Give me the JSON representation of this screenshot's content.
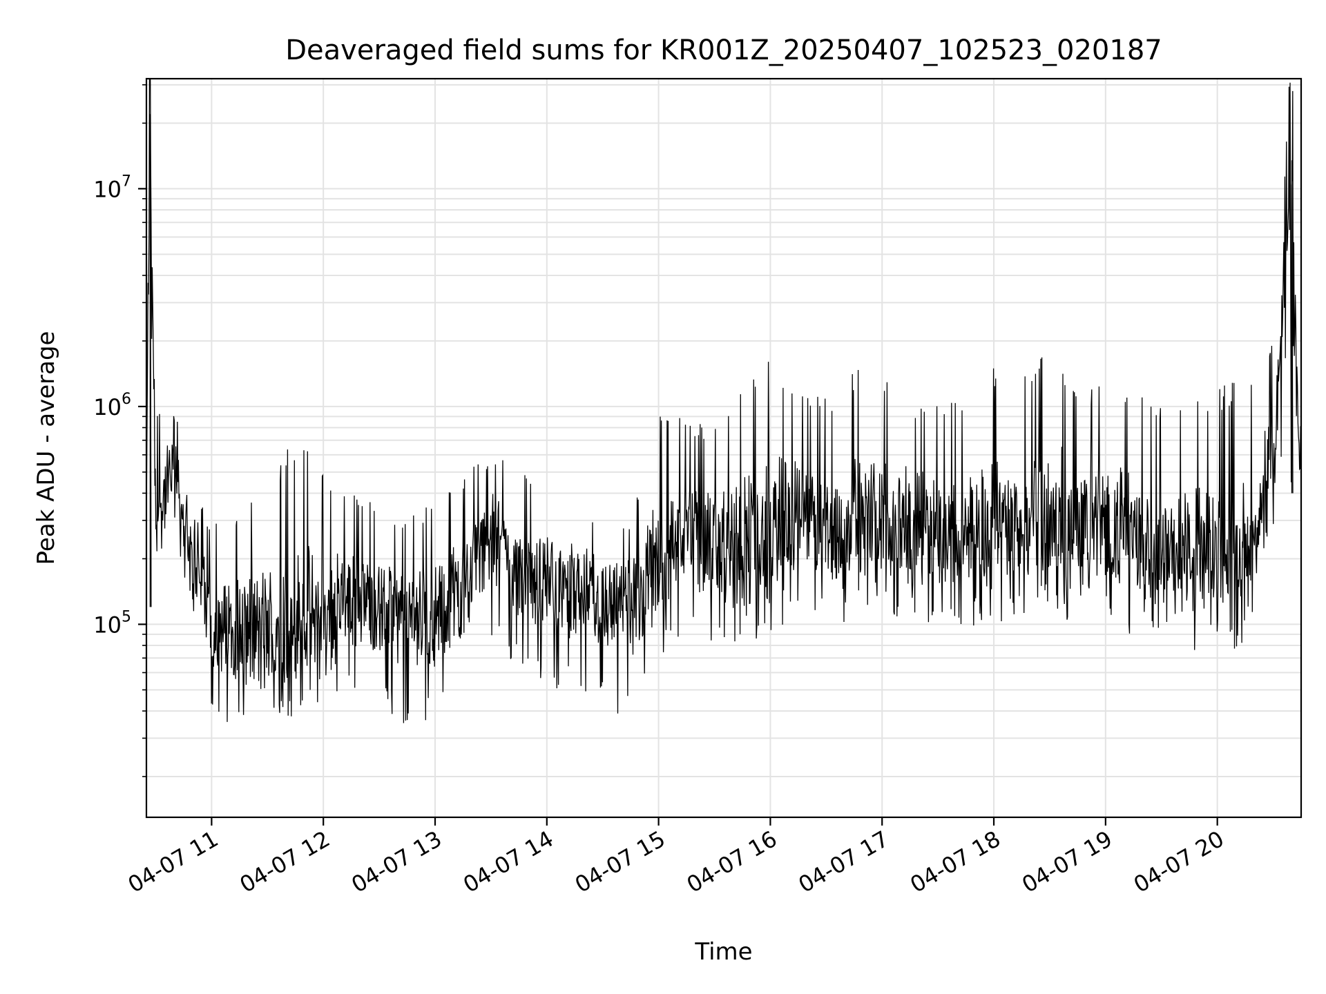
{
  "chart_data": {
    "type": "line",
    "title": "Deaveraged field sums for KR001Z_20250407_102523_020187",
    "xlabel": "Time",
    "ylabel": "Peak ADU - average",
    "yscale": "log",
    "ylim": [
      13000,
      32000000
    ],
    "xlim": [
      "2025-04-07 10:25",
      "2025-04-07 20:45"
    ],
    "grid": true,
    "line_color": "#000000",
    "xticks": [
      {
        "value": "2025-04-07 11:00",
        "label": "04-07 11"
      },
      {
        "value": "2025-04-07 12:00",
        "label": "04-07 12"
      },
      {
        "value": "2025-04-07 13:00",
        "label": "04-07 13"
      },
      {
        "value": "2025-04-07 14:00",
        "label": "04-07 14"
      },
      {
        "value": "2025-04-07 15:00",
        "label": "04-07 15"
      },
      {
        "value": "2025-04-07 16:00",
        "label": "04-07 16"
      },
      {
        "value": "2025-04-07 17:00",
        "label": "04-07 17"
      },
      {
        "value": "2025-04-07 18:00",
        "label": "04-07 18"
      },
      {
        "value": "2025-04-07 19:00",
        "label": "04-07 19"
      },
      {
        "value": "2025-04-07 20:00",
        "label": "04-07 20"
      }
    ],
    "yticks": [
      {
        "value": 100000,
        "base": "10",
        "exp": "5"
      },
      {
        "value": 1000000,
        "base": "10",
        "exp": "6"
      },
      {
        "value": 10000000,
        "base": "10",
        "exp": "7"
      }
    ],
    "series": [
      {
        "x": [
          "2025-04-07 10:25",
          "2025-04-07 10:27",
          "2025-04-07 10:30",
          "2025-04-07 10:35",
          "2025-04-07 10:40",
          "2025-04-07 10:45",
          "2025-04-07 10:50",
          "2025-04-07 10:55",
          "2025-04-07 11:00",
          "2025-04-07 11:15",
          "2025-04-07 11:30",
          "2025-04-07 11:45",
          "2025-04-07 12:00",
          "2025-04-07 12:15",
          "2025-04-07 12:30",
          "2025-04-07 12:45",
          "2025-04-07 13:00",
          "2025-04-07 13:15",
          "2025-04-07 13:30",
          "2025-04-07 13:45",
          "2025-04-07 14:00",
          "2025-04-07 14:15",
          "2025-04-07 14:30",
          "2025-04-07 14:45",
          "2025-04-07 15:00",
          "2025-04-07 15:15",
          "2025-04-07 15:30",
          "2025-04-07 15:45",
          "2025-04-07 16:00",
          "2025-04-07 16:15",
          "2025-04-07 16:30",
          "2025-04-07 16:45",
          "2025-04-07 17:00",
          "2025-04-07 17:15",
          "2025-04-07 17:30",
          "2025-04-07 17:45",
          "2025-04-07 18:00",
          "2025-04-07 18:15",
          "2025-04-07 18:30",
          "2025-04-07 18:45",
          "2025-04-07 19:00",
          "2025-04-07 19:15",
          "2025-04-07 19:30",
          "2025-04-07 19:45",
          "2025-04-07 20:00",
          "2025-04-07 20:15",
          "2025-04-07 20:30",
          "2025-04-07 20:40",
          "2025-04-07 20:44"
        ],
        "y": [
          350000,
          22000000,
          300000,
          400000,
          550000,
          300000,
          180000,
          150000,
          100000,
          95000,
          90000,
          95000,
          110000,
          130000,
          120000,
          105000,
          110000,
          150000,
          250000,
          170000,
          160000,
          140000,
          130000,
          115000,
          200000,
          260000,
          220000,
          240000,
          260000,
          300000,
          280000,
          270000,
          320000,
          280000,
          270000,
          250000,
          300000,
          270000,
          300000,
          290000,
          270000,
          250000,
          230000,
          210000,
          190000,
          200000,
          520000,
          13500000,
          550000
        ],
        "y_low": [
          120000,
          120000,
          100000,
          150000,
          120000,
          80000,
          60000,
          45000,
          40000,
          30000,
          35000,
          38000,
          45000,
          50000,
          45000,
          30000,
          35000,
          45000,
          80000,
          60000,
          50000,
          45000,
          40000,
          35000,
          70000,
          90000,
          80000,
          80000,
          90000,
          100000,
          95000,
          90000,
          110000,
          100000,
          95000,
          90000,
          100000,
          95000,
          100000,
          100000,
          95000,
          90000,
          80000,
          75000,
          70000,
          80000,
          320000,
          400000,
          200000
        ],
        "y_high": [
          800000,
          22000000,
          900000,
          1200000,
          900000,
          400000,
          300000,
          350000,
          300000,
          320000,
          500000,
          700000,
          550000,
          400000,
          350000,
          300000,
          380000,
          500000,
          600000,
          550000,
          400000,
          350000,
          320000,
          300000,
          1000000,
          900000,
          800000,
          1400000,
          1700000,
          1200000,
          1100000,
          1500000,
          1400000,
          1100000,
          1000000,
          1200000,
          1500000,
          1300000,
          2300000,
          1200000,
          1300000,
          1200000,
          1000000,
          1100000,
          1200000,
          1500000,
          2200000,
          13500000,
          800000
        ]
      }
    ]
  }
}
